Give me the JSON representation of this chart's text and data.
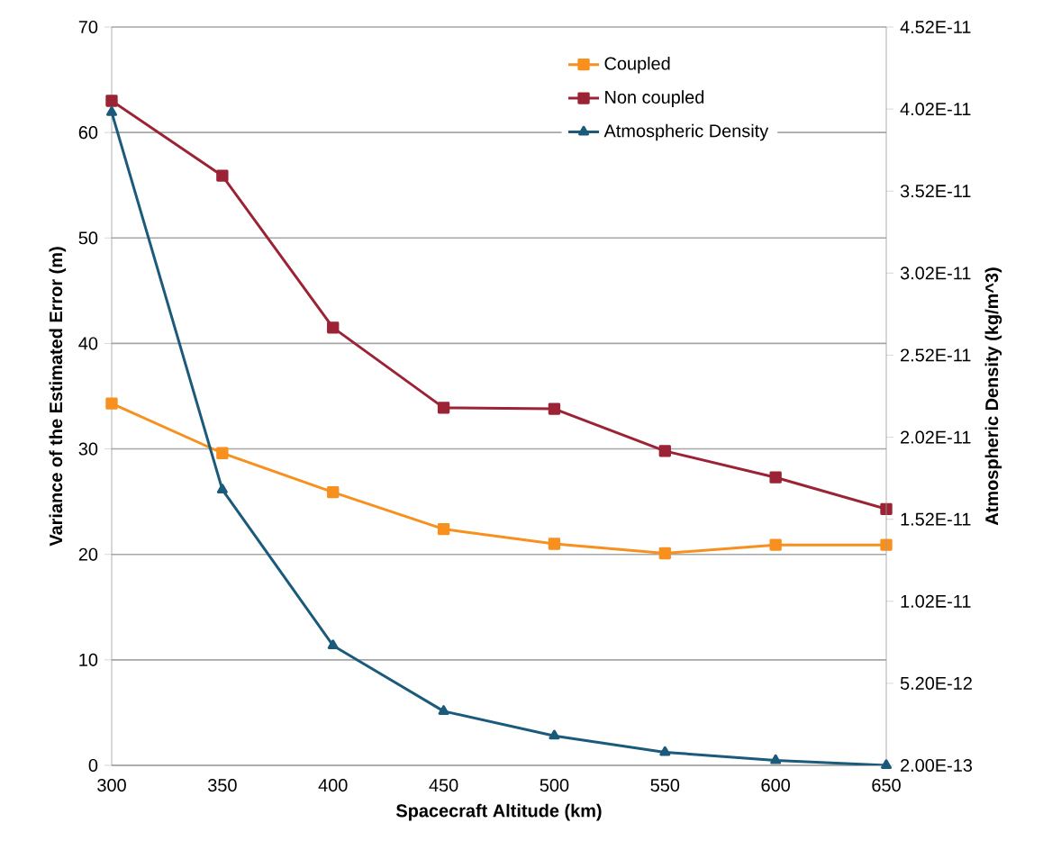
{
  "chart_data": {
    "type": "line",
    "xlabel": "Spacecraft Altitude (km)",
    "ylabel": "Variance of the Estimated Error (m)",
    "y2label": "Atmospheric Density (kg/m^3)",
    "x": [
      300,
      350,
      400,
      450,
      500,
      550,
      600,
      650
    ],
    "xlim": [
      300,
      650
    ],
    "xticks": [
      300,
      350,
      400,
      450,
      500,
      550,
      600,
      650
    ],
    "ylim": [
      0,
      70
    ],
    "yticks": [
      0,
      10,
      20,
      30,
      40,
      50,
      60,
      70
    ],
    "y2lim": [
      2e-13,
      4.52e-11
    ],
    "y2ticks": [
      {
        "value": 2e-13,
        "label": "2.00E-13"
      },
      {
        "value": 5.2e-12,
        "label": "5.20E-12"
      },
      {
        "value": 1.02e-11,
        "label": "1.02E-11"
      },
      {
        "value": 1.52e-11,
        "label": "1.52E-11"
      },
      {
        "value": 2.02e-11,
        "label": "2.02E-11"
      },
      {
        "value": 2.52e-11,
        "label": "2.52E-11"
      },
      {
        "value": 3.02e-11,
        "label": "3.02E-11"
      },
      {
        "value": 3.52e-11,
        "label": "3.52E-11"
      },
      {
        "value": 4.02e-11,
        "label": "4.02E-11"
      },
      {
        "value": 4.52e-11,
        "label": "4.52E-11"
      }
    ],
    "grid": "y",
    "legend": "top right",
    "series": [
      {
        "name": "Coupled",
        "color": "#f7901e",
        "marker": "square",
        "values": [
          34.3,
          29.6,
          25.9,
          22.4,
          21.0,
          20.1,
          20.9,
          20.9
        ]
      },
      {
        "name": "Non coupled",
        "color": "#9b2335",
        "marker": "square",
        "values": [
          63.0,
          55.9,
          41.5,
          33.9,
          33.8,
          29.8,
          27.3,
          24.3
        ]
      },
      {
        "name": "Atmospheric Density",
        "color": "#1b5a7a",
        "marker": "triangle",
        "axis": "y2",
        "values": [
          4e-11,
          1.7e-11,
          7.5e-12,
          3.5e-12,
          2e-12,
          1e-12,
          5e-13,
          2e-13
        ]
      }
    ]
  }
}
